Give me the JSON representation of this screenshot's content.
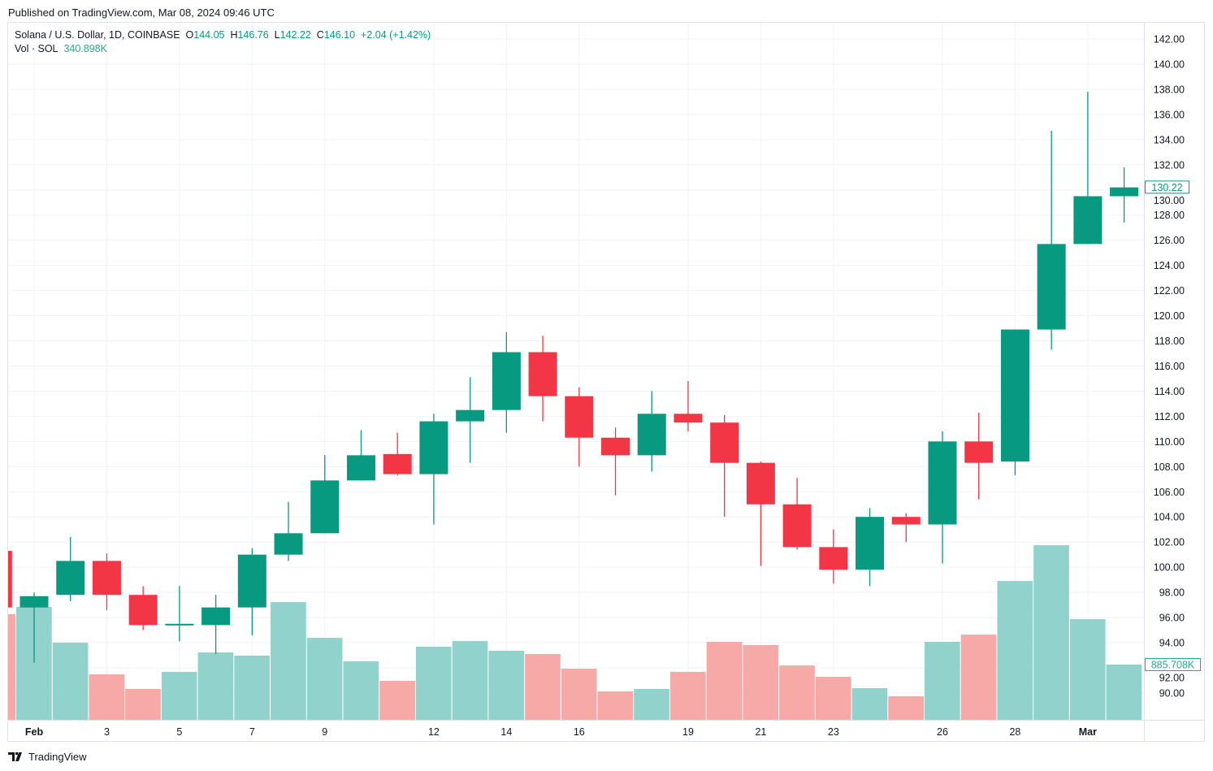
{
  "header": {
    "published": "Published on TradingView.com, Mar 08, 2024 09:46 UTC",
    "symbol": "Solana / U.S. Dollar, 1D, COINBASE",
    "o_label": "O",
    "o_value": "144.05",
    "h_label": "H",
    "h_value": "146.76",
    "l_label": "L",
    "l_value": "142.22",
    "c_label": "C",
    "c_value": "146.10",
    "change": "+2.04 (+1.42%)",
    "vol_label": "Vol · SOL",
    "vol_value": "340.898K"
  },
  "brand": "TradingView",
  "colors": {
    "up": "#089981",
    "down": "#F23645",
    "vol_up": "#92D2CC",
    "vol_down": "#F7A9A7",
    "grid": "#f0f3fa"
  },
  "chart_data": {
    "type": "candlestick",
    "title": "Solana / U.S. Dollar, 1D, COINBASE",
    "ylim": [
      88,
      143
    ],
    "y_ticks": [
      "142.00",
      "140.00",
      "138.00",
      "136.00",
      "134.00",
      "132.00",
      "130.00",
      "128.00",
      "126.00",
      "124.00",
      "122.00",
      "120.00",
      "118.00",
      "116.00",
      "114.00",
      "112.00",
      "110.00",
      "108.00",
      "106.00",
      "104.00",
      "102.00",
      "100.00",
      "98.00",
      "96.00",
      "94.00",
      "92.00",
      "90.00"
    ],
    "x_ticks": [
      {
        "day": 1,
        "label": "Feb",
        "bold": true
      },
      {
        "day": 3,
        "label": "3"
      },
      {
        "day": 5,
        "label": "5"
      },
      {
        "day": 7,
        "label": "7"
      },
      {
        "day": 9,
        "label": "9"
      },
      {
        "day": 12,
        "label": "12"
      },
      {
        "day": 14,
        "label": "14"
      },
      {
        "day": 16,
        "label": "16"
      },
      {
        "day": 19,
        "label": "19"
      },
      {
        "day": 21,
        "label": "21"
      },
      {
        "day": 23,
        "label": "23"
      },
      {
        "day": 26,
        "label": "26"
      },
      {
        "day": 28,
        "label": "28"
      },
      {
        "day": 30,
        "label": "Mar",
        "bold": true
      }
    ],
    "last_price_label": "130.22",
    "last_volume_label": "885.708K",
    "volume_unit": "K",
    "candles": [
      {
        "date": "2024-01-31",
        "o": 101.3,
        "h": 101.3,
        "l": 96.8,
        "c": 96.8,
        "v": 1693
      },
      {
        "date": "2024-02-01",
        "o": 96.8,
        "h": 98.0,
        "l": 92.4,
        "c": 97.7,
        "v": 1810
      },
      {
        "date": "2024-02-02",
        "o": 97.8,
        "h": 102.4,
        "l": 97.3,
        "c": 100.5,
        "v": 1237
      },
      {
        "date": "2024-02-03",
        "o": 100.5,
        "h": 101.1,
        "l": 96.6,
        "c": 97.8,
        "v": 729
      },
      {
        "date": "2024-02-04",
        "o": 97.8,
        "h": 98.5,
        "l": 95.0,
        "c": 95.4,
        "v": 495
      },
      {
        "date": "2024-02-05",
        "o": 95.4,
        "h": 98.5,
        "l": 94.1,
        "c": 95.5,
        "v": 768
      },
      {
        "date": "2024-02-06",
        "o": 95.4,
        "h": 97.8,
        "l": 93.1,
        "c": 96.8,
        "v": 1081
      },
      {
        "date": "2024-02-07",
        "o": 96.8,
        "h": 101.5,
        "l": 94.6,
        "c": 101.0,
        "v": 1029
      },
      {
        "date": "2024-02-08",
        "o": 101.0,
        "h": 105.2,
        "l": 100.5,
        "c": 102.7,
        "v": 1888
      },
      {
        "date": "2024-02-09",
        "o": 102.7,
        "h": 108.9,
        "l": 102.7,
        "c": 106.9,
        "v": 1315
      },
      {
        "date": "2024-02-10",
        "o": 106.9,
        "h": 110.9,
        "l": 106.9,
        "c": 108.9,
        "v": 938
      },
      {
        "date": "2024-02-11",
        "o": 109.0,
        "h": 110.7,
        "l": 107.3,
        "c": 107.4,
        "v": 625
      },
      {
        "date": "2024-02-12",
        "o": 107.4,
        "h": 112.2,
        "l": 103.4,
        "c": 111.6,
        "v": 1172
      },
      {
        "date": "2024-02-13",
        "o": 111.6,
        "h": 115.1,
        "l": 108.3,
        "c": 112.5,
        "v": 1263
      },
      {
        "date": "2024-02-14",
        "o": 112.5,
        "h": 118.7,
        "l": 110.7,
        "c": 117.1,
        "v": 1107
      },
      {
        "date": "2024-02-15",
        "o": 117.1,
        "h": 118.4,
        "l": 111.6,
        "c": 113.6,
        "v": 1055
      },
      {
        "date": "2024-02-16",
        "o": 113.6,
        "h": 114.3,
        "l": 108.0,
        "c": 110.3,
        "v": 820
      },
      {
        "date": "2024-02-17",
        "o": 110.3,
        "h": 111.1,
        "l": 105.7,
        "c": 108.9,
        "v": 456
      },
      {
        "date": "2024-02-18",
        "o": 108.9,
        "h": 114.0,
        "l": 107.6,
        "c": 112.2,
        "v": 495
      },
      {
        "date": "2024-02-19",
        "o": 112.2,
        "h": 114.8,
        "l": 110.8,
        "c": 111.5,
        "v": 768
      },
      {
        "date": "2024-02-20",
        "o": 111.5,
        "h": 112.1,
        "l": 104.0,
        "c": 108.3,
        "v": 1250
      },
      {
        "date": "2024-02-21",
        "o": 108.3,
        "h": 108.4,
        "l": 100.1,
        "c": 105.0,
        "v": 1198
      },
      {
        "date": "2024-02-22",
        "o": 105.0,
        "h": 107.1,
        "l": 101.4,
        "c": 101.6,
        "v": 872
      },
      {
        "date": "2024-02-23",
        "o": 101.6,
        "h": 103.0,
        "l": 98.7,
        "c": 99.8,
        "v": 690
      },
      {
        "date": "2024-02-24",
        "o": 99.8,
        "h": 104.7,
        "l": 98.5,
        "c": 104.0,
        "v": 508
      },
      {
        "date": "2024-02-25",
        "o": 104.0,
        "h": 104.3,
        "l": 102.0,
        "c": 103.4,
        "v": 378
      },
      {
        "date": "2024-02-26",
        "o": 103.4,
        "h": 110.8,
        "l": 100.3,
        "c": 110.0,
        "v": 1250
      },
      {
        "date": "2024-02-27",
        "o": 110.0,
        "h": 112.3,
        "l": 105.4,
        "c": 108.3,
        "v": 1367
      },
      {
        "date": "2024-02-28",
        "o": 108.4,
        "h": 118.9,
        "l": 107.3,
        "c": 118.9,
        "v": 2226
      },
      {
        "date": "2024-02-29",
        "o": 118.9,
        "h": 134.7,
        "l": 117.3,
        "c": 125.7,
        "v": 2799
      },
      {
        "date": "2024-03-01",
        "o": 125.7,
        "h": 137.8,
        "l": 125.7,
        "c": 129.5,
        "v": 1614
      },
      {
        "date": "2024-03-02",
        "o": 129.5,
        "h": 131.8,
        "l": 127.4,
        "c": 130.2,
        "v": 885.708
      }
    ]
  }
}
